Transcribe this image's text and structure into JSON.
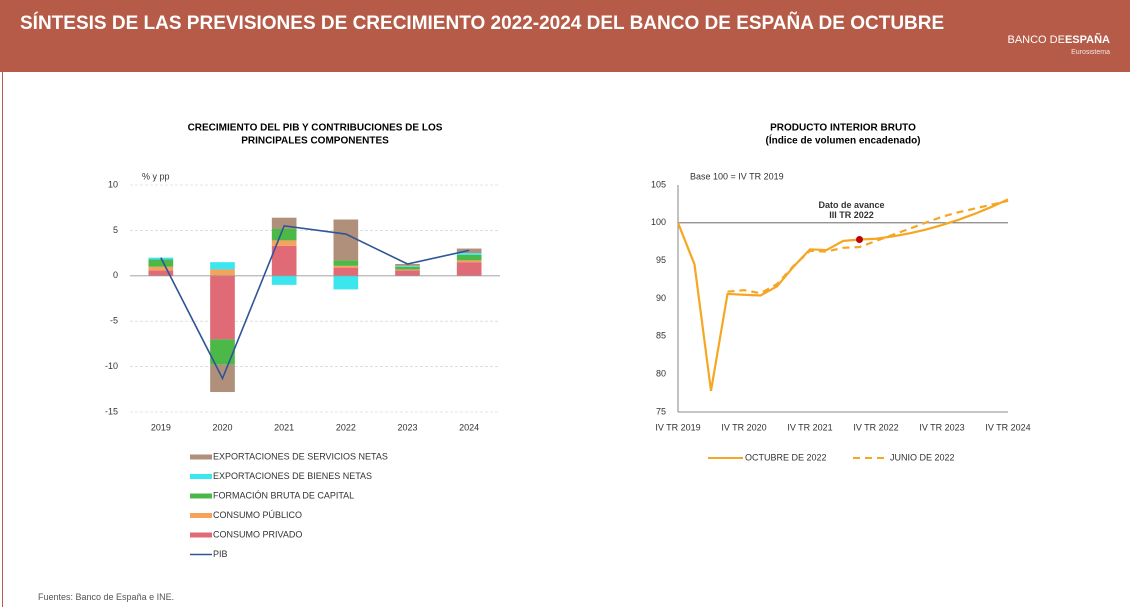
{
  "header": {
    "title": "SÍNTESIS DE LAS PREVISIONES DE CRECIMIENTO 2022-2024 DEL BANCO DE ESPAÑA DE OCTUBRE",
    "logo": {
      "light": "BANCO DE",
      "bold": "ESPAÑA",
      "sub": "Eurosistema"
    }
  },
  "chart_data": [
    {
      "type": "bar",
      "stacked": true,
      "title": [
        "CRECIMIENTO DEL PIB Y CONTRIBUCIONES DE LOS",
        "PRINCIPALES COMPONENTES"
      ],
      "y_label": "% y pp",
      "categories": [
        "2019",
        "2020",
        "2021",
        "2022",
        "2023",
        "2024"
      ],
      "ylim": [
        -15,
        10
      ],
      "yticks": [
        -15,
        -10,
        -5,
        0,
        5,
        10
      ],
      "grid": true,
      "series": [
        {
          "name": "CONSUMO PRIVADO",
          "type": "bar",
          "color": "#e06a75",
          "values": [
            0.6,
            -7.0,
            3.3,
            0.9,
            0.6,
            1.5
          ]
        },
        {
          "name": "CONSUMO PÚBLICO",
          "type": "bar",
          "color": "#f7a25a",
          "values": [
            0.4,
            0.7,
            0.6,
            0.2,
            0.1,
            0.2
          ]
        },
        {
          "name": "FORMACIÓN BRUTA DE CAPITAL",
          "type": "bar",
          "color": "#4cb848",
          "values": [
            0.8,
            -2.8,
            1.3,
            0.6,
            0.3,
            0.6
          ]
        },
        {
          "name": "EXPORTACIONES DE BIENES NETAS",
          "type": "bar",
          "color": "#3be6ee",
          "values": [
            0.2,
            0.8,
            -1.0,
            -1.5,
            0.1,
            0.2
          ]
        },
        {
          "name": "EXPORTACIONES DE SERVICIOS NETAS",
          "type": "bar",
          "color": "#b0907a",
          "values": [
            0.0,
            -3.0,
            1.2,
            4.5,
            0.2,
            0.5
          ]
        },
        {
          "name": "PIB",
          "type": "line",
          "color": "#2f5597",
          "values": [
            2.0,
            -11.3,
            5.5,
            4.6,
            1.3,
            2.8
          ]
        }
      ]
    },
    {
      "type": "line",
      "title": [
        "PRODUCTO INTERIOR BRUTO",
        "(Índice de volumen encadenado)"
      ],
      "y_label": "Base 100 = IV TR 2019",
      "categories": [
        "IV TR 2019",
        null,
        null,
        null,
        "IV TR 2020",
        null,
        null,
        null,
        "IV TR 2021",
        null,
        null,
        null,
        "IV TR 2022",
        null,
        null,
        null,
        "IV TR 2023",
        null,
        null,
        null,
        "IV TR 2024"
      ],
      "ylim": [
        75,
        105
      ],
      "yticks": [
        75,
        80,
        85,
        90,
        95,
        100,
        105
      ],
      "grid": false,
      "hline": 100,
      "series": [
        {
          "name": "OCTUBRE DE 2022",
          "color": "#f5a623",
          "style": "solid",
          "values": [
            100,
            94.5,
            77.8,
            90.6,
            90.5,
            90.4,
            91.6,
            94.2,
            96.5,
            96.4,
            97.6,
            97.8,
            97.9,
            98.2,
            98.6,
            99.1,
            99.7,
            100.4,
            101.2,
            102.1,
            103.1
          ]
        },
        {
          "name": "JUNIO DE 2022",
          "color": "#f5a623",
          "style": "dashed",
          "values": [
            null,
            null,
            null,
            90.9,
            91.1,
            90.7,
            91.9,
            94.3,
            96.3,
            96.2,
            96.7,
            96.8,
            97.6,
            98.4,
            99.2,
            100.0,
            100.8,
            101.4,
            101.9,
            102.4,
            102.9
          ]
        }
      ],
      "annotation": {
        "lines": [
          "Dato de avance",
          "III TR 2022"
        ],
        "point_index": 11,
        "color": "#c00000"
      }
    }
  ],
  "footer": {
    "source": "Fuentes: Banco de España e INE."
  }
}
